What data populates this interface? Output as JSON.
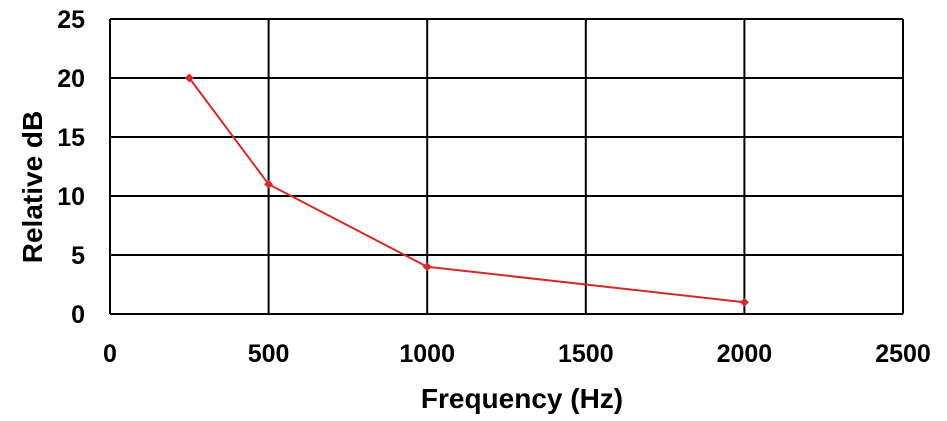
{
  "chart_data": {
    "type": "line",
    "title": "",
    "xlabel": "Frequency (Hz)",
    "ylabel": "Relative dB",
    "xlim": [
      0,
      2500
    ],
    "ylim": [
      0,
      25
    ],
    "x_ticks": [
      0,
      500,
      1000,
      1500,
      2000,
      2500
    ],
    "y_ticks": [
      0,
      5,
      10,
      15,
      20,
      25
    ],
    "x_tick_labels": [
      "0",
      "500",
      "1000",
      "1500",
      "2000",
      "2500"
    ],
    "y_tick_labels": [
      "0",
      "5",
      "10",
      "15",
      "20",
      "25"
    ],
    "grid": true,
    "legend": "none",
    "series": [
      {
        "color": "#d42a2a",
        "marker": "diamond",
        "x": [
          250,
          500,
          1000,
          2000
        ],
        "y": [
          20,
          11,
          4,
          1
        ]
      }
    ]
  }
}
